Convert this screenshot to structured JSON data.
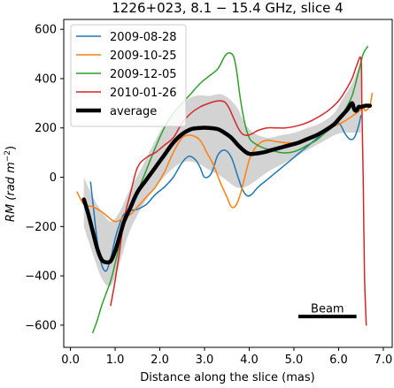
{
  "chart_data": {
    "type": "line",
    "title": "1226+023, 8.1 − 15.4 GHz, slice 4",
    "xlabel": "Distance along the slice (mas)",
    "ylabel": "RM (rad m⁻²)",
    "ylabel_main": "RM",
    "ylabel_unit": "(rad m",
    "ylabel_sup": "−2",
    "ylabel_close": ")",
    "xlim": [
      -0.15,
      7.2
    ],
    "ylim": [
      -690,
      640
    ],
    "xticks": [
      0.0,
      1.0,
      2.0,
      3.0,
      4.0,
      5.0,
      6.0,
      7.0
    ],
    "xtick_labels": [
      "0.0",
      "1.0",
      "2.0",
      "3.0",
      "4.0",
      "5.0",
      "6.0",
      "7.0"
    ],
    "yticks": [
      -600,
      -400,
      -200,
      0,
      200,
      400,
      600
    ],
    "ytick_labels": [
      "−600",
      "−400",
      "−200",
      "0",
      "200",
      "400",
      "600"
    ],
    "grid": false,
    "legend_placement": "top-left",
    "series": [
      {
        "name": "2009-08-28",
        "color": "#1f77b4",
        "x": [
          0.45,
          0.5,
          0.6,
          0.7,
          0.8,
          0.9,
          1.0,
          1.1,
          1.2,
          1.35,
          1.5,
          1.7,
          1.9,
          2.1,
          2.3,
          2.5,
          2.65,
          2.8,
          2.9,
          3.0,
          3.15,
          3.3,
          3.45,
          3.6,
          3.75,
          3.85,
          3.95,
          4.05,
          4.2,
          4.4,
          4.6,
          4.8,
          5.0,
          5.2,
          5.4,
          5.6,
          5.8,
          6.0,
          6.15,
          6.25,
          6.35,
          6.45,
          6.5
        ],
        "y": [
          -20,
          -100,
          -260,
          -355,
          -380,
          -330,
          -250,
          -190,
          -150,
          -135,
          -130,
          -110,
          -70,
          -40,
          0,
          60,
          85,
          70,
          40,
          0,
          15,
          90,
          110,
          80,
          0,
          -50,
          -75,
          -70,
          -40,
          -10,
          20,
          50,
          80,
          110,
          140,
          170,
          200,
          220,
          175,
          155,
          160,
          210,
          250
        ]
      },
      {
        "name": "2009-10-25",
        "color": "#ff7f0e",
        "x": [
          0.15,
          0.3,
          0.5,
          0.7,
          0.9,
          1.0,
          1.1,
          1.2,
          1.35,
          1.5,
          1.7,
          1.9,
          2.1,
          2.3,
          2.5,
          2.7,
          2.9,
          3.05,
          3.2,
          3.35,
          3.5,
          3.6,
          3.7,
          3.8,
          3.9,
          4.0,
          4.1,
          4.25,
          4.4,
          4.6,
          4.8,
          5.0,
          5.2,
          5.4,
          5.6,
          5.8,
          6.0,
          6.2,
          6.4,
          6.55,
          6.6,
          6.7,
          6.75
        ],
        "y": [
          -60,
          -110,
          -120,
          -140,
          -170,
          -180,
          -175,
          -160,
          -150,
          -120,
          -80,
          -40,
          20,
          100,
          160,
          170,
          150,
          100,
          50,
          -20,
          -80,
          -120,
          -115,
          -70,
          0,
          70,
          110,
          140,
          150,
          145,
          140,
          140,
          150,
          160,
          180,
          200,
          215,
          235,
          260,
          280,
          270,
          290,
          340
        ]
      },
      {
        "name": "2009-12-05",
        "color": "#2ca02c",
        "x": [
          0.5,
          0.6,
          0.7,
          0.8,
          0.9,
          1.0,
          1.1,
          1.2,
          1.35,
          1.5,
          1.7,
          1.9,
          2.1,
          2.3,
          2.5,
          2.7,
          2.9,
          3.1,
          3.3,
          3.45,
          3.55,
          3.65,
          3.72,
          3.8,
          3.9,
          4.0,
          4.1,
          4.3,
          4.5,
          4.7,
          4.9,
          5.1,
          5.3,
          5.5,
          5.7,
          5.9,
          6.1,
          6.3,
          6.45,
          6.55,
          6.65
        ],
        "y": [
          -630,
          -580,
          -520,
          -470,
          -420,
          -350,
          -270,
          -190,
          -120,
          -60,
          30,
          120,
          200,
          260,
          300,
          340,
          380,
          410,
          440,
          490,
          505,
          490,
          430,
          320,
          220,
          160,
          140,
          120,
          110,
          100,
          100,
          110,
          130,
          150,
          180,
          210,
          260,
          330,
          430,
          500,
          530
        ]
      },
      {
        "name": "2010-01-26",
        "color": "#d62728",
        "x": [
          0.9,
          1.0,
          1.1,
          1.2,
          1.35,
          1.5,
          1.7,
          1.9,
          2.1,
          2.3,
          2.5,
          2.7,
          2.9,
          3.1,
          3.3,
          3.45,
          3.55,
          3.65,
          3.75,
          3.85,
          3.95,
          4.05,
          4.2,
          4.4,
          4.6,
          4.8,
          5.0,
          5.2,
          5.4,
          5.6,
          5.8,
          6.0,
          6.15,
          6.3,
          6.4,
          6.5,
          6.52,
          6.55,
          6.58,
          6.62
        ],
        "y": [
          -520,
          -420,
          -300,
          -170,
          -60,
          40,
          80,
          100,
          130,
          160,
          220,
          260,
          285,
          300,
          310,
          305,
          280,
          240,
          200,
          175,
          170,
          175,
          190,
          200,
          200,
          200,
          205,
          215,
          230,
          250,
          275,
          310,
          350,
          400,
          450,
          480,
          300,
          0,
          -400,
          -600
        ]
      },
      {
        "name": "average",
        "color": "#000000",
        "x": [
          0.3,
          0.4,
          0.5,
          0.6,
          0.7,
          0.8,
          0.9,
          1.0,
          1.1,
          1.2,
          1.35,
          1.5,
          1.7,
          1.9,
          2.1,
          2.3,
          2.5,
          2.7,
          2.9,
          3.1,
          3.3,
          3.45,
          3.6,
          3.75,
          3.9,
          4.0,
          4.1,
          4.3,
          4.5,
          4.7,
          4.9,
          5.1,
          5.3,
          5.5,
          5.7,
          5.9,
          6.0,
          6.1,
          6.2,
          6.3,
          6.35,
          6.4,
          6.45,
          6.5,
          6.6,
          6.7
        ],
        "y": [
          -90,
          -150,
          -220,
          -290,
          -335,
          -345,
          -340,
          -300,
          -240,
          -180,
          -120,
          -60,
          -10,
          40,
          90,
          140,
          175,
          195,
          200,
          200,
          195,
          180,
          160,
          130,
          105,
          95,
          95,
          100,
          110,
          120,
          130,
          140,
          155,
          170,
          190,
          215,
          235,
          255,
          275,
          300,
          275,
          270,
          285,
          285,
          290,
          290
        ]
      }
    ],
    "uncertainty_band": {
      "color": "#d3d3d3",
      "x": [
        0.3,
        0.5,
        0.7,
        0.9,
        1.1,
        1.3,
        1.6,
        1.9,
        2.2,
        2.5,
        2.8,
        3.1,
        3.4,
        3.7,
        3.9,
        4.1,
        4.4,
        4.7,
        5.0,
        5.3,
        5.6,
        5.9,
        6.1,
        6.3,
        6.5
      ],
      "upper": [
        0,
        -80,
        -140,
        -180,
        -140,
        -60,
        40,
        150,
        240,
        300,
        330,
        330,
        335,
        290,
        220,
        180,
        160,
        170,
        180,
        200,
        220,
        260,
        320,
        380,
        470
      ],
      "lower": [
        -200,
        -310,
        -410,
        -440,
        -350,
        -230,
        -120,
        -40,
        20,
        60,
        60,
        30,
        0,
        -40,
        -40,
        -20,
        20,
        50,
        80,
        110,
        140,
        170,
        180,
        180,
        180
      ]
    },
    "annotations": [
      {
        "text": "Beam",
        "x": 5.75,
        "y": -548,
        "bar_x": [
          5.1,
          6.4
        ],
        "bar_y": -565
      }
    ]
  }
}
